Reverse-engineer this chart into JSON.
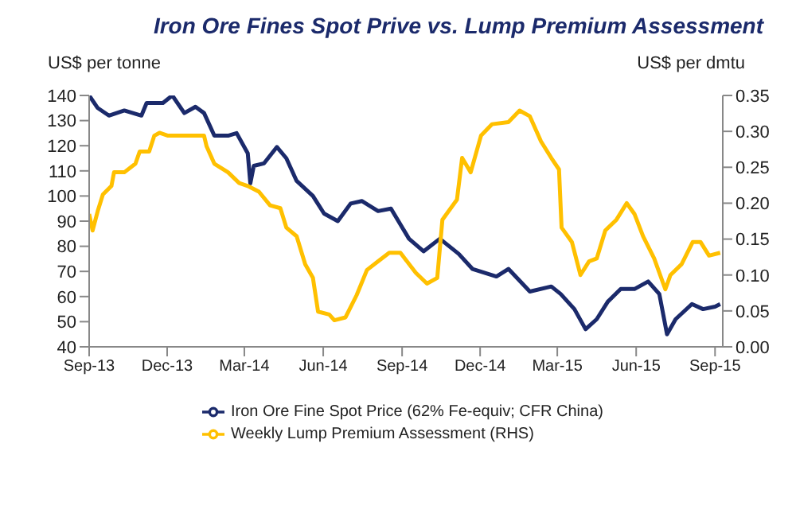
{
  "chart_data": {
    "type": "line",
    "title": "Iron Ore Fines Spot Prive vs. Lump Premium Assessment",
    "ylabel": "US$ per tonne",
    "y2label": "US$ per dmtu",
    "xlim": [
      "2013-09-01",
      "2015-09-10"
    ],
    "xticks": [
      {
        "value": "2013-09-01",
        "label": "Sep-13"
      },
      {
        "value": "2013-12-01",
        "label": "Dec-13"
      },
      {
        "value": "2014-03-01",
        "label": "Mar-14"
      },
      {
        "value": "2014-06-01",
        "label": "Jun-14"
      },
      {
        "value": "2014-09-01",
        "label": "Sep-14"
      },
      {
        "value": "2014-12-01",
        "label": "Dec-14"
      },
      {
        "value": "2015-03-01",
        "label": "Mar-15"
      },
      {
        "value": "2015-06-01",
        "label": "Jun-15"
      },
      {
        "value": "2015-09-01",
        "label": "Sep-15"
      }
    ],
    "ylim": [
      40,
      140
    ],
    "yticks": [
      40,
      50,
      60,
      70,
      80,
      90,
      100,
      110,
      120,
      130,
      140
    ],
    "y2lim": [
      0,
      0.35
    ],
    "y2ticks": [
      {
        "value": 0,
        "label": "0.00"
      },
      {
        "value": 0.05,
        "label": "0.05"
      },
      {
        "value": 0.1,
        "label": "0.10"
      },
      {
        "value": 0.15,
        "label": "0.15"
      },
      {
        "value": 0.2,
        "label": "0.20"
      },
      {
        "value": 0.25,
        "label": "0.25"
      },
      {
        "value": 0.3,
        "label": "0.30"
      },
      {
        "value": 0.35,
        "label": "0.35"
      }
    ],
    "grid": false,
    "legend": "bottom",
    "marker": "none",
    "line_style": "solid",
    "series": [
      {
        "name": "Iron Ore Fine Spot Price (62% Fe-equiv; CFR China)",
        "color": "#1b2a6b",
        "x": [
          "2013-09-01",
          "2013-09-11",
          "2013-09-24",
          "2013-10-12",
          "2013-11-01",
          "2013-11-07",
          "2013-11-26",
          "2013-12-07",
          "2013-12-21",
          "2014-01-03",
          "2014-01-13",
          "2014-01-25",
          "2014-02-10",
          "2014-02-20",
          "2014-03-05",
          "2014-03-08",
          "2014-03-12",
          "2014-03-24",
          "2014-04-08",
          "2014-04-19",
          "2014-05-01",
          "2014-05-20",
          "2014-06-02",
          "2014-06-18",
          "2014-07-03",
          "2014-07-16",
          "2014-08-04",
          "2014-08-19",
          "2014-09-09",
          "2014-09-26",
          "2014-10-15",
          "2014-11-06",
          "2014-11-22",
          "2014-12-20",
          "2015-01-03",
          "2015-01-28",
          "2015-02-22",
          "2015-03-05",
          "2015-03-21",
          "2015-04-03",
          "2015-04-16",
          "2015-04-29",
          "2015-05-14",
          "2015-05-30",
          "2015-06-15",
          "2015-06-28",
          "2015-07-07",
          "2015-07-17",
          "2015-08-05",
          "2015-08-18",
          "2015-09-01",
          "2015-09-07"
        ],
        "values": [
          140,
          135,
          132,
          134,
          132,
          137,
          137,
          140,
          133,
          135.5,
          133,
          124,
          124,
          125,
          117,
          105,
          112,
          113,
          119.5,
          115,
          106,
          100,
          93,
          90,
          97,
          98,
          94,
          95,
          83,
          78,
          83,
          77,
          71,
          68,
          71,
          62,
          64,
          61,
          55,
          47,
          51,
          58,
          63,
          63,
          66,
          61,
          45,
          51,
          57,
          55,
          56,
          57
        ]
      },
      {
        "name": "Weekly Lump Premium Assessment (RHS)",
        "color": "#ffc000",
        "axis": "y2",
        "x": [
          "2013-09-01",
          "2013-09-05",
          "2013-09-11",
          "2013-09-17",
          "2013-09-27",
          "2013-09-30",
          "2013-10-12",
          "2013-10-25",
          "2013-10-30",
          "2013-11-10",
          "2013-11-16",
          "2013-11-22",
          "2013-12-02",
          "2014-01-13",
          "2014-01-16",
          "2014-01-25",
          "2014-02-10",
          "2014-02-23",
          "2014-03-05",
          "2014-03-18",
          "2014-03-31",
          "2014-04-12",
          "2014-04-19",
          "2014-05-01",
          "2014-05-11",
          "2014-05-20",
          "2014-05-26",
          "2014-06-08",
          "2014-06-14",
          "2014-06-27",
          "2014-07-10",
          "2014-07-22",
          "2014-08-04",
          "2014-08-17",
          "2014-08-30",
          "2014-09-17",
          "2014-09-30",
          "2014-10-12",
          "2014-10-18",
          "2014-11-04",
          "2014-11-10",
          "2014-11-20",
          "2014-12-02",
          "2014-12-15",
          "2015-01-03",
          "2015-01-16",
          "2015-01-28",
          "2015-02-10",
          "2015-02-22",
          "2015-03-03",
          "2015-03-06",
          "2015-03-18",
          "2015-03-28",
          "2015-04-07",
          "2015-04-16",
          "2015-04-26",
          "2015-05-09",
          "2015-05-21",
          "2015-05-30",
          "2015-06-09",
          "2015-06-22",
          "2015-07-05",
          "2015-07-11",
          "2015-07-24",
          "2015-08-06",
          "2015-08-15",
          "2015-08-25",
          "2015-09-07"
        ],
        "values": [
          0.185,
          0.162,
          0.189,
          0.212,
          0.224,
          0.243,
          0.243,
          0.255,
          0.272,
          0.272,
          0.294,
          0.298,
          0.294,
          0.294,
          0.279,
          0.255,
          0.243,
          0.228,
          0.224,
          0.216,
          0.197,
          0.193,
          0.166,
          0.154,
          0.115,
          0.096,
          0.049,
          0.045,
          0.037,
          0.041,
          0.072,
          0.107,
          0.119,
          0.131,
          0.131,
          0.103,
          0.088,
          0.096,
          0.177,
          0.205,
          0.263,
          0.243,
          0.294,
          0.31,
          0.313,
          0.329,
          0.321,
          0.286,
          0.263,
          0.247,
          0.166,
          0.146,
          0.1,
          0.119,
          0.123,
          0.162,
          0.177,
          0.2,
          0.185,
          0.154,
          0.123,
          0.08,
          0.1,
          0.115,
          0.146,
          0.146,
          0.127,
          0.131
        ]
      }
    ]
  }
}
